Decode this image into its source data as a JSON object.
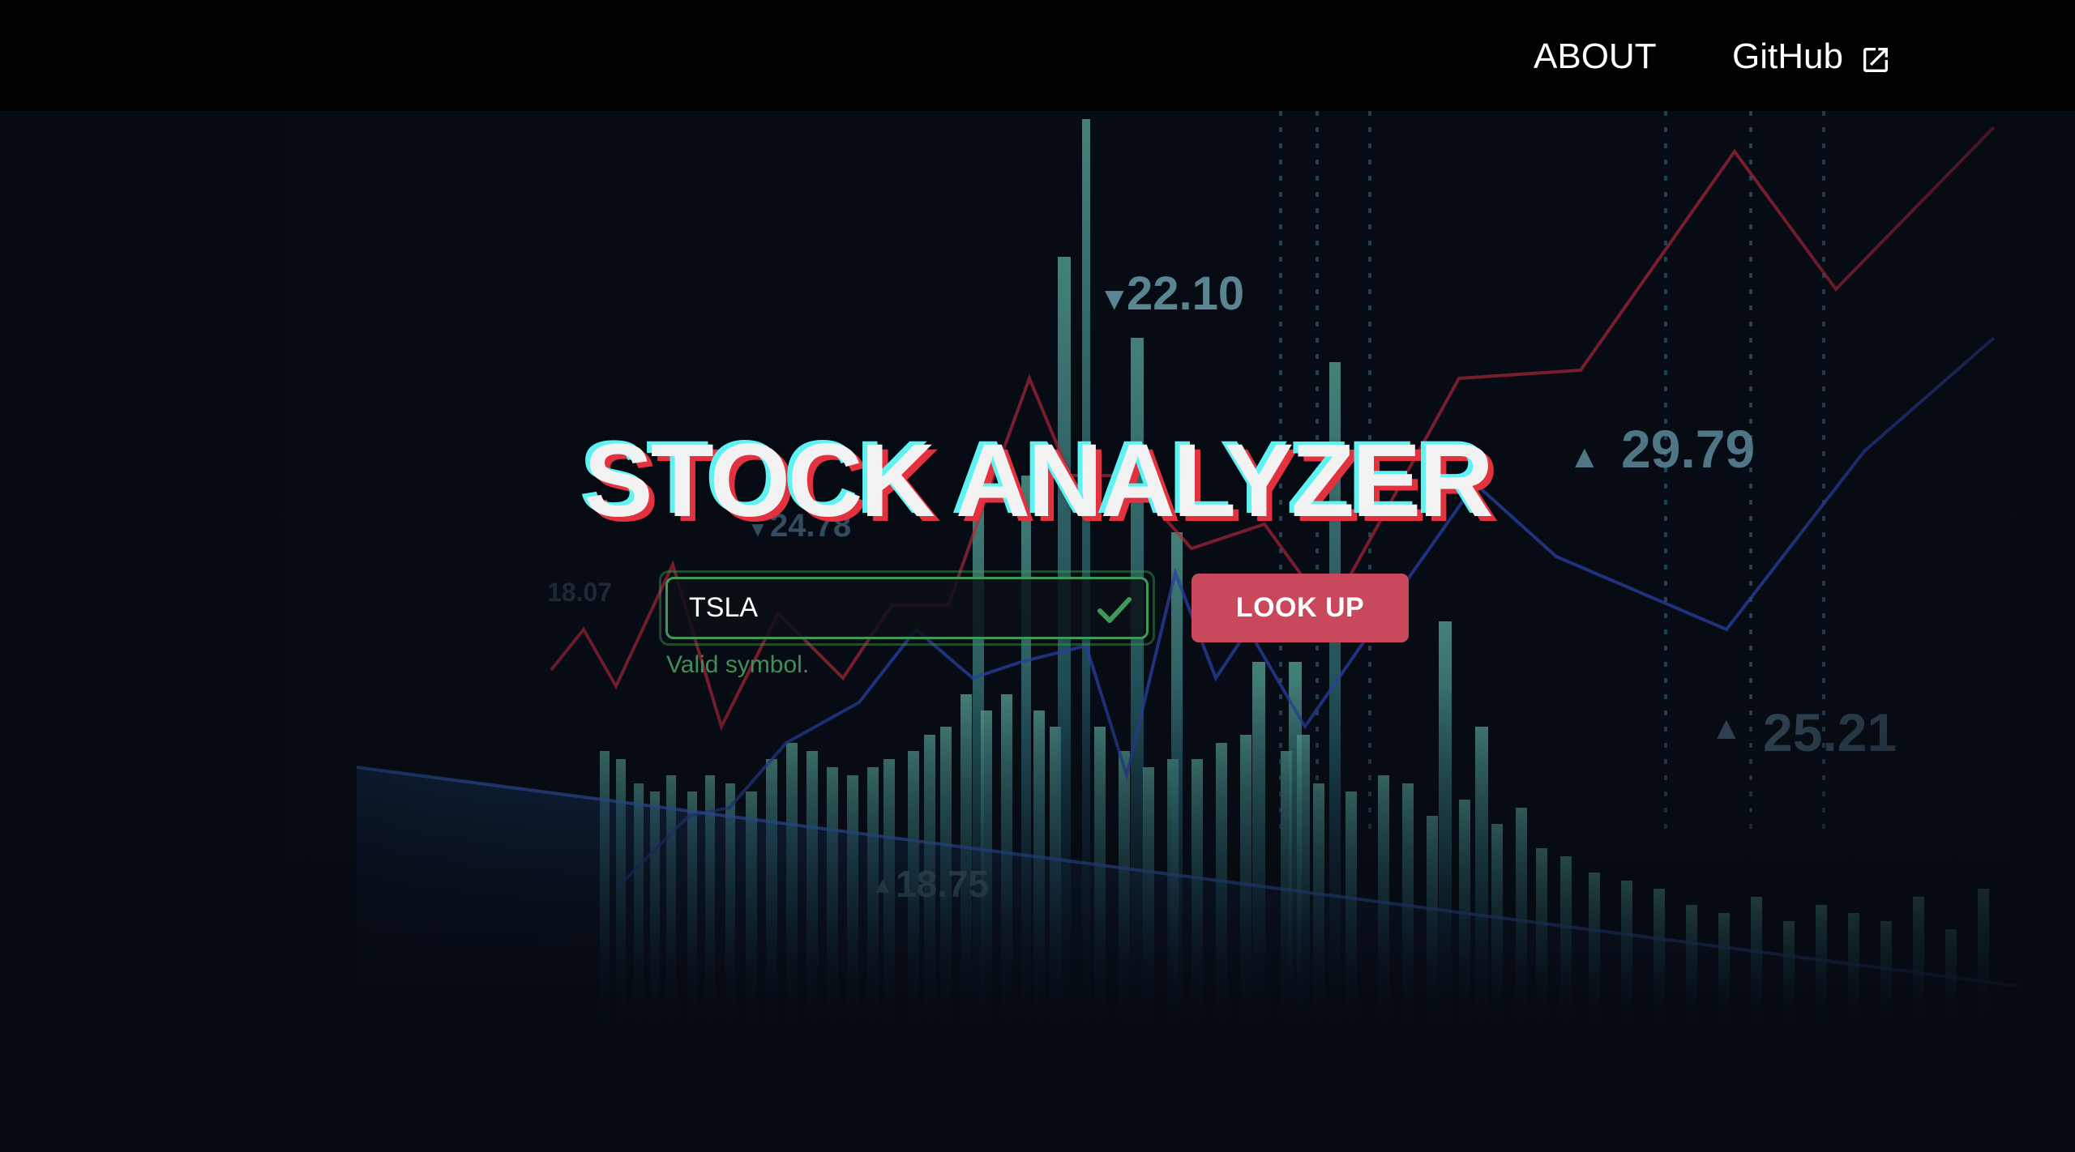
{
  "nav": {
    "about_label": "ABOUT",
    "github_label": "GitHub",
    "github_icon": "external-link-icon"
  },
  "hero": {
    "title": "STOCK ANALYZER",
    "search": {
      "value": "TSLA",
      "placeholder": "",
      "status_icon": "checkmark-icon",
      "validation_message": "Valid symbol."
    },
    "lookup_label": "LOOK UP"
  },
  "background": {
    "price_labels": [
      "22.10",
      "29.79",
      "24.78",
      "25.21",
      "18.75",
      "18.07"
    ]
  },
  "colors": {
    "nav_bg": "#000000",
    "page_bg": "#070c14",
    "button": "#c9485b",
    "valid": "#3f9a5a",
    "title_cyan": "#5ff2f2",
    "title_red": "#e2323f"
  }
}
